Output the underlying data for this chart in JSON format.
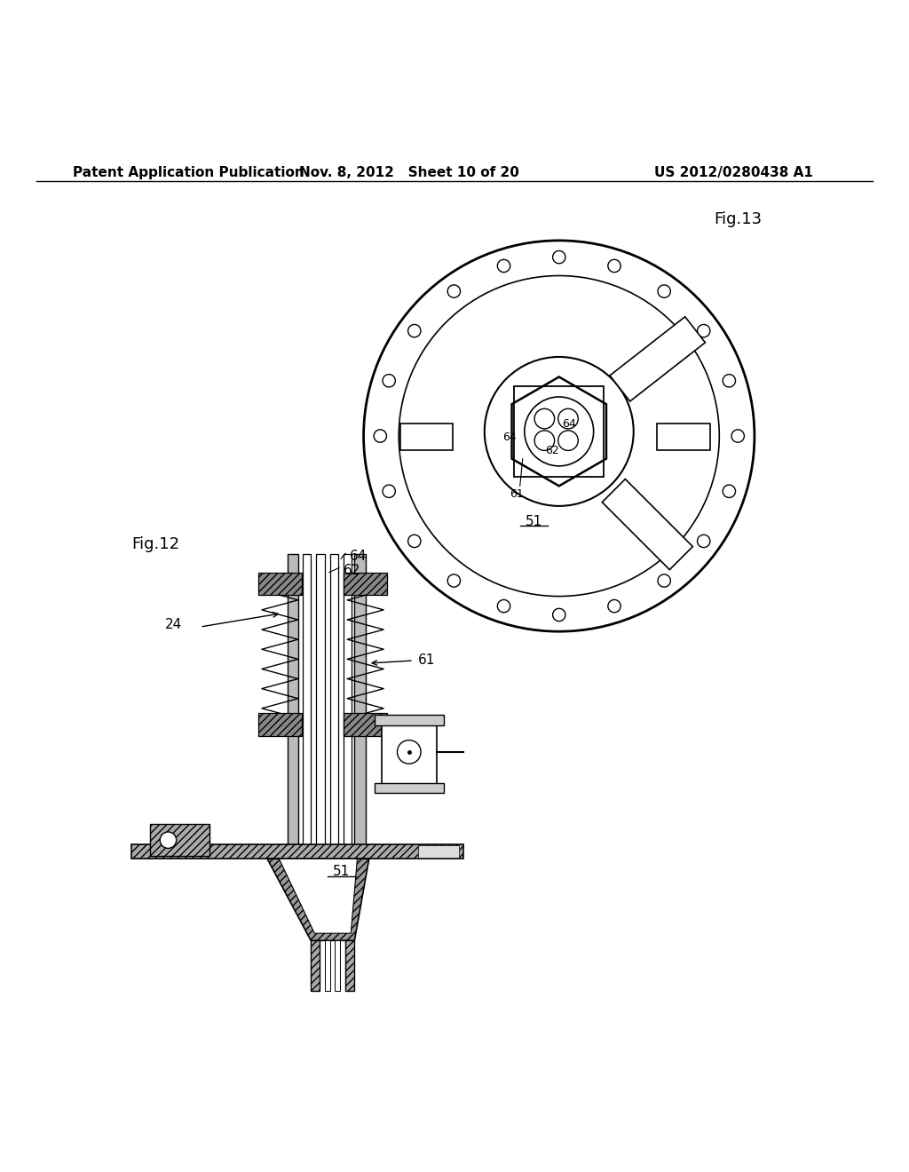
{
  "bg_color": "#ffffff",
  "line_color": "#000000",
  "header_left": "Patent Application Publication",
  "header_mid": "Nov. 8, 2012   Sheet 10 of 20",
  "header_right": "US 2012/0280438 A1",
  "fig13_label": "Fig.13",
  "fig12_label": "Fig.12",
  "font_size_header": 11,
  "font_size_fig": 13,
  "font_size_label": 11
}
